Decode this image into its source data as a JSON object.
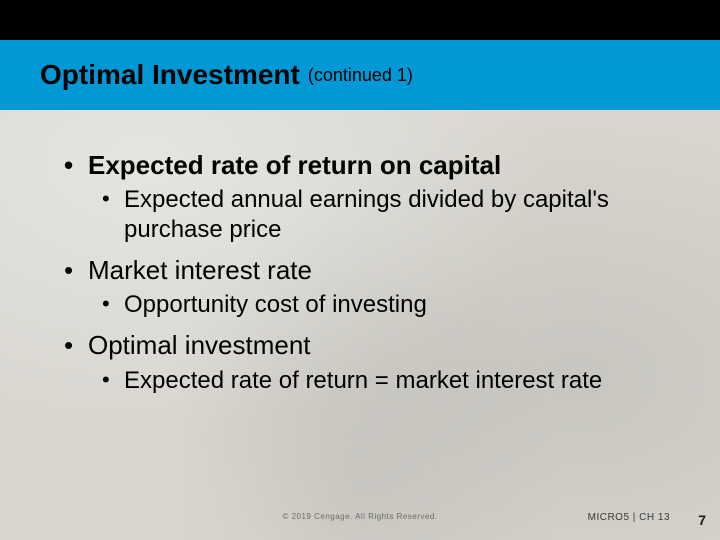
{
  "title": {
    "main": "Optimal Investment",
    "continued": "(continued 1)"
  },
  "bullets": [
    {
      "text": "Expected rate of return on capital",
      "bold": true,
      "sub": [
        "Expected annual earnings divided by capital's purchase price"
      ]
    },
    {
      "text": "Market interest rate",
      "bold": false,
      "sub": [
        "Opportunity cost of investing"
      ]
    },
    {
      "text": "Optimal investment",
      "bold": false,
      "sub": [
        "Expected rate of return = market interest rate"
      ]
    }
  ],
  "footer": {
    "copyright": "© 2019 Cengage. All Rights Reserved.",
    "course_ref": "MICRO5 | CH 13",
    "page": "7"
  },
  "colors": {
    "title_bar": "#0099d6",
    "top_bar": "#000000",
    "background": "#d8d6cf",
    "text": "#000000"
  }
}
